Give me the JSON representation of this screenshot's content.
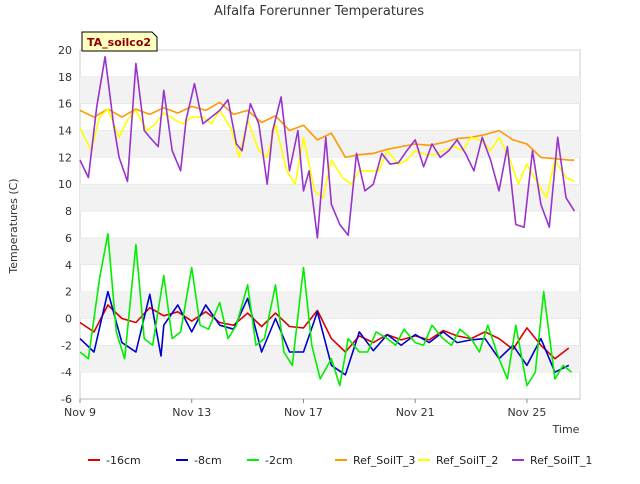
{
  "chart_data": {
    "type": "line",
    "title": "Alfalfa Forerunner Temperatures",
    "badge": "TA_soilco2",
    "xlabel": "Time",
    "ylabel": "Temperatures (C)",
    "xlim": [
      9.0,
      26.9
    ],
    "ylim": [
      -6,
      20
    ],
    "x_ticks": [
      {
        "value": 9,
        "label": "Nov 9"
      },
      {
        "value": 13,
        "label": "Nov 13"
      },
      {
        "value": 17,
        "label": "Nov 17"
      },
      {
        "value": 21,
        "label": "Nov 21"
      },
      {
        "value": 25,
        "label": "Nov 25"
      }
    ],
    "y_ticks": [
      -6,
      -4,
      -2,
      0,
      2,
      4,
      6,
      8,
      10,
      12,
      14,
      16,
      18,
      20
    ],
    "grid": "horizontal bands",
    "legend": "bottom",
    "series": [
      {
        "name": "-16cm",
        "color": "#dd0000",
        "x": [
          9.0,
          9.5,
          10.0,
          10.5,
          11.0,
          11.5,
          12.0,
          12.5,
          13.0,
          13.5,
          14.0,
          14.5,
          15.0,
          15.5,
          16.0,
          16.5,
          17.0,
          17.5,
          18.0,
          18.5,
          19.0,
          19.5,
          20.0,
          20.5,
          21.0,
          21.5,
          22.0,
          22.5,
          23.0,
          23.5,
          24.0,
          24.5,
          25.0,
          25.5,
          26.0,
          26.5
        ],
        "y": [
          -0.3,
          -1.0,
          1.0,
          0.0,
          -0.3,
          0.8,
          0.2,
          0.5,
          -0.2,
          0.5,
          -0.3,
          -0.5,
          0.4,
          -0.6,
          0.4,
          -0.6,
          -0.7,
          0.6,
          -1.5,
          -2.5,
          -1.3,
          -1.8,
          -1.2,
          -1.6,
          -1.3,
          -1.6,
          -0.9,
          -1.3,
          -1.5,
          -1.0,
          -1.5,
          -2.3,
          -0.7,
          -2.0,
          -3.0,
          -2.2
        ]
      },
      {
        "name": "-8cm",
        "color": "#0000cc",
        "x": [
          9.0,
          9.5,
          10.0,
          10.5,
          11.0,
          11.5,
          11.9,
          12.0,
          12.5,
          13.0,
          13.5,
          14.0,
          14.5,
          15.0,
          15.5,
          16.0,
          16.5,
          17.0,
          17.5,
          18.0,
          18.5,
          19.0,
          19.5,
          20.0,
          20.5,
          21.0,
          21.5,
          22.0,
          22.5,
          23.0,
          23.5,
          24.0,
          24.5,
          25.0,
          25.5,
          26.0,
          26.5
        ],
        "y": [
          -1.5,
          -2.5,
          2.0,
          -1.8,
          -2.5,
          1.8,
          -2.8,
          -0.5,
          1.0,
          -1.0,
          1.0,
          -0.5,
          -0.8,
          1.5,
          -2.5,
          0.0,
          -2.5,
          -2.5,
          0.5,
          -3.5,
          -4.2,
          -1.0,
          -2.4,
          -1.2,
          -2.0,
          -1.2,
          -1.8,
          -1.0,
          -1.8,
          -1.6,
          -1.5,
          -3.0,
          -2.0,
          -3.5,
          -1.5,
          -4.0,
          -3.5
        ]
      },
      {
        "name": "-2cm",
        "color": "#00ee00",
        "x": [
          9.0,
          9.3,
          9.7,
          10.0,
          10.3,
          10.6,
          11.0,
          11.3,
          11.6,
          12.0,
          12.3,
          12.6,
          13.0,
          13.3,
          13.6,
          14.0,
          14.3,
          14.6,
          15.0,
          15.3,
          15.6,
          16.0,
          16.3,
          16.6,
          17.0,
          17.3,
          17.6,
          18.0,
          18.3,
          18.6,
          19.0,
          19.3,
          19.6,
          20.0,
          20.3,
          20.6,
          21.0,
          21.3,
          21.6,
          22.0,
          22.3,
          22.6,
          23.0,
          23.3,
          23.6,
          24.0,
          24.3,
          24.6,
          25.0,
          25.3,
          25.6,
          26.0,
          26.3,
          26.6
        ],
        "y": [
          -2.5,
          -3.0,
          3.0,
          6.3,
          -1.0,
          -3.0,
          5.5,
          -1.5,
          -2.0,
          3.2,
          -1.5,
          -1.0,
          3.8,
          -0.5,
          -0.8,
          1.2,
          -1.5,
          -0.5,
          2.5,
          -2.0,
          -1.5,
          2.5,
          -2.5,
          -3.5,
          3.8,
          -2.0,
          -4.5,
          -3.0,
          -5.0,
          -1.5,
          -2.5,
          -2.5,
          -1.0,
          -1.5,
          -2.0,
          -0.8,
          -1.8,
          -2.0,
          -0.5,
          -1.5,
          -2.0,
          -0.8,
          -1.5,
          -2.5,
          -0.5,
          -3.0,
          -4.5,
          -0.5,
          -5.0,
          -4.0,
          2.0,
          -4.5,
          -3.5,
          -4.0
        ]
      },
      {
        "name": "Ref_SoilT_3",
        "color": "#ff9900",
        "x": [
          9.0,
          9.5,
          10.0,
          10.5,
          11.0,
          11.5,
          12.0,
          12.5,
          13.0,
          13.5,
          14.0,
          14.5,
          15.0,
          15.5,
          16.0,
          16.5,
          17.0,
          17.5,
          18.0,
          18.5,
          19.0,
          19.5,
          20.0,
          20.5,
          21.0,
          21.5,
          22.0,
          22.5,
          23.0,
          23.5,
          24.0,
          24.5,
          25.0,
          25.5,
          26.0,
          26.5,
          26.7
        ],
        "y": [
          15.5,
          15.0,
          15.6,
          15.0,
          15.6,
          15.2,
          15.7,
          15.3,
          15.8,
          15.5,
          16.1,
          15.2,
          15.5,
          14.6,
          15.1,
          14.0,
          14.4,
          13.3,
          13.8,
          12.0,
          12.2,
          12.3,
          12.6,
          12.8,
          13.0,
          12.9,
          13.1,
          13.4,
          13.5,
          13.7,
          14.0,
          13.3,
          13.0,
          12.0,
          11.9,
          11.8,
          11.8
        ]
      },
      {
        "name": "Ref_SoilT_2",
        "color": "#ffff00",
        "x": [
          9.0,
          9.4,
          9.7,
          10.0,
          10.4,
          10.7,
          11.0,
          11.4,
          11.7,
          12.0,
          12.4,
          12.7,
          13.0,
          13.4,
          13.7,
          14.0,
          14.4,
          14.7,
          15.0,
          15.4,
          15.7,
          16.0,
          16.4,
          16.7,
          17.0,
          17.4,
          17.7,
          18.0,
          18.4,
          18.7,
          19.0,
          19.4,
          19.7,
          20.0,
          20.4,
          20.7,
          21.0,
          21.4,
          21.7,
          22.0,
          22.4,
          22.7,
          23.0,
          23.4,
          23.7,
          24.0,
          24.4,
          24.7,
          25.0,
          25.4,
          25.7,
          26.0,
          26.4,
          26.7
        ],
        "y": [
          14.2,
          12.5,
          15.0,
          15.6,
          13.5,
          14.8,
          15.5,
          14.0,
          14.5,
          15.3,
          14.8,
          14.5,
          15.0,
          15.0,
          14.5,
          15.5,
          14.2,
          12.0,
          14.8,
          12.5,
          12.0,
          14.5,
          11.0,
          10.0,
          13.5,
          9.5,
          9.0,
          11.8,
          10.5,
          10.0,
          11.0,
          11.0,
          11.0,
          12.5,
          11.5,
          11.8,
          12.5,
          12.2,
          12.2,
          12.5,
          12.8,
          12.5,
          13.5,
          13.2,
          12.5,
          13.5,
          11.8,
          10.0,
          11.5,
          10.0,
          9.0,
          11.8,
          10.5,
          10.2
        ]
      },
      {
        "name": "Ref_SoilT_1",
        "color": "#9933cc",
        "x": [
          9.0,
          9.3,
          9.6,
          9.9,
          10.2,
          10.4,
          10.7,
          11.0,
          11.3,
          11.5,
          11.8,
          12.0,
          12.3,
          12.6,
          12.8,
          13.1,
          13.4,
          13.7,
          14.0,
          14.3,
          14.6,
          14.8,
          15.1,
          15.4,
          15.7,
          15.9,
          16.2,
          16.5,
          16.8,
          17.0,
          17.2,
          17.5,
          17.8,
          18.0,
          18.3,
          18.6,
          18.9,
          19.2,
          19.5,
          19.8,
          20.1,
          20.4,
          20.7,
          21.0,
          21.3,
          21.6,
          21.9,
          22.2,
          22.5,
          22.8,
          23.1,
          23.4,
          23.7,
          24.0,
          24.3,
          24.6,
          24.9,
          25.2,
          25.5,
          25.8,
          26.1,
          26.4,
          26.7
        ],
        "y": [
          11.8,
          10.5,
          15.8,
          19.5,
          14.5,
          12.0,
          10.2,
          19.0,
          14.0,
          13.5,
          12.8,
          17.0,
          12.5,
          11.0,
          14.8,
          17.5,
          14.5,
          15.0,
          15.5,
          16.3,
          13.0,
          12.5,
          16.0,
          14.5,
          10.0,
          14.0,
          16.5,
          11.0,
          14.0,
          9.5,
          11.0,
          6.0,
          13.5,
          8.5,
          7.0,
          6.2,
          12.3,
          9.5,
          10.0,
          12.3,
          11.5,
          11.6,
          12.5,
          13.3,
          11.3,
          13.0,
          12.0,
          12.5,
          13.3,
          12.3,
          11.0,
          13.5,
          11.8,
          9.5,
          12.8,
          7.0,
          6.8,
          12.5,
          8.5,
          6.8,
          13.5,
          9.0,
          8.0
        ]
      }
    ]
  }
}
